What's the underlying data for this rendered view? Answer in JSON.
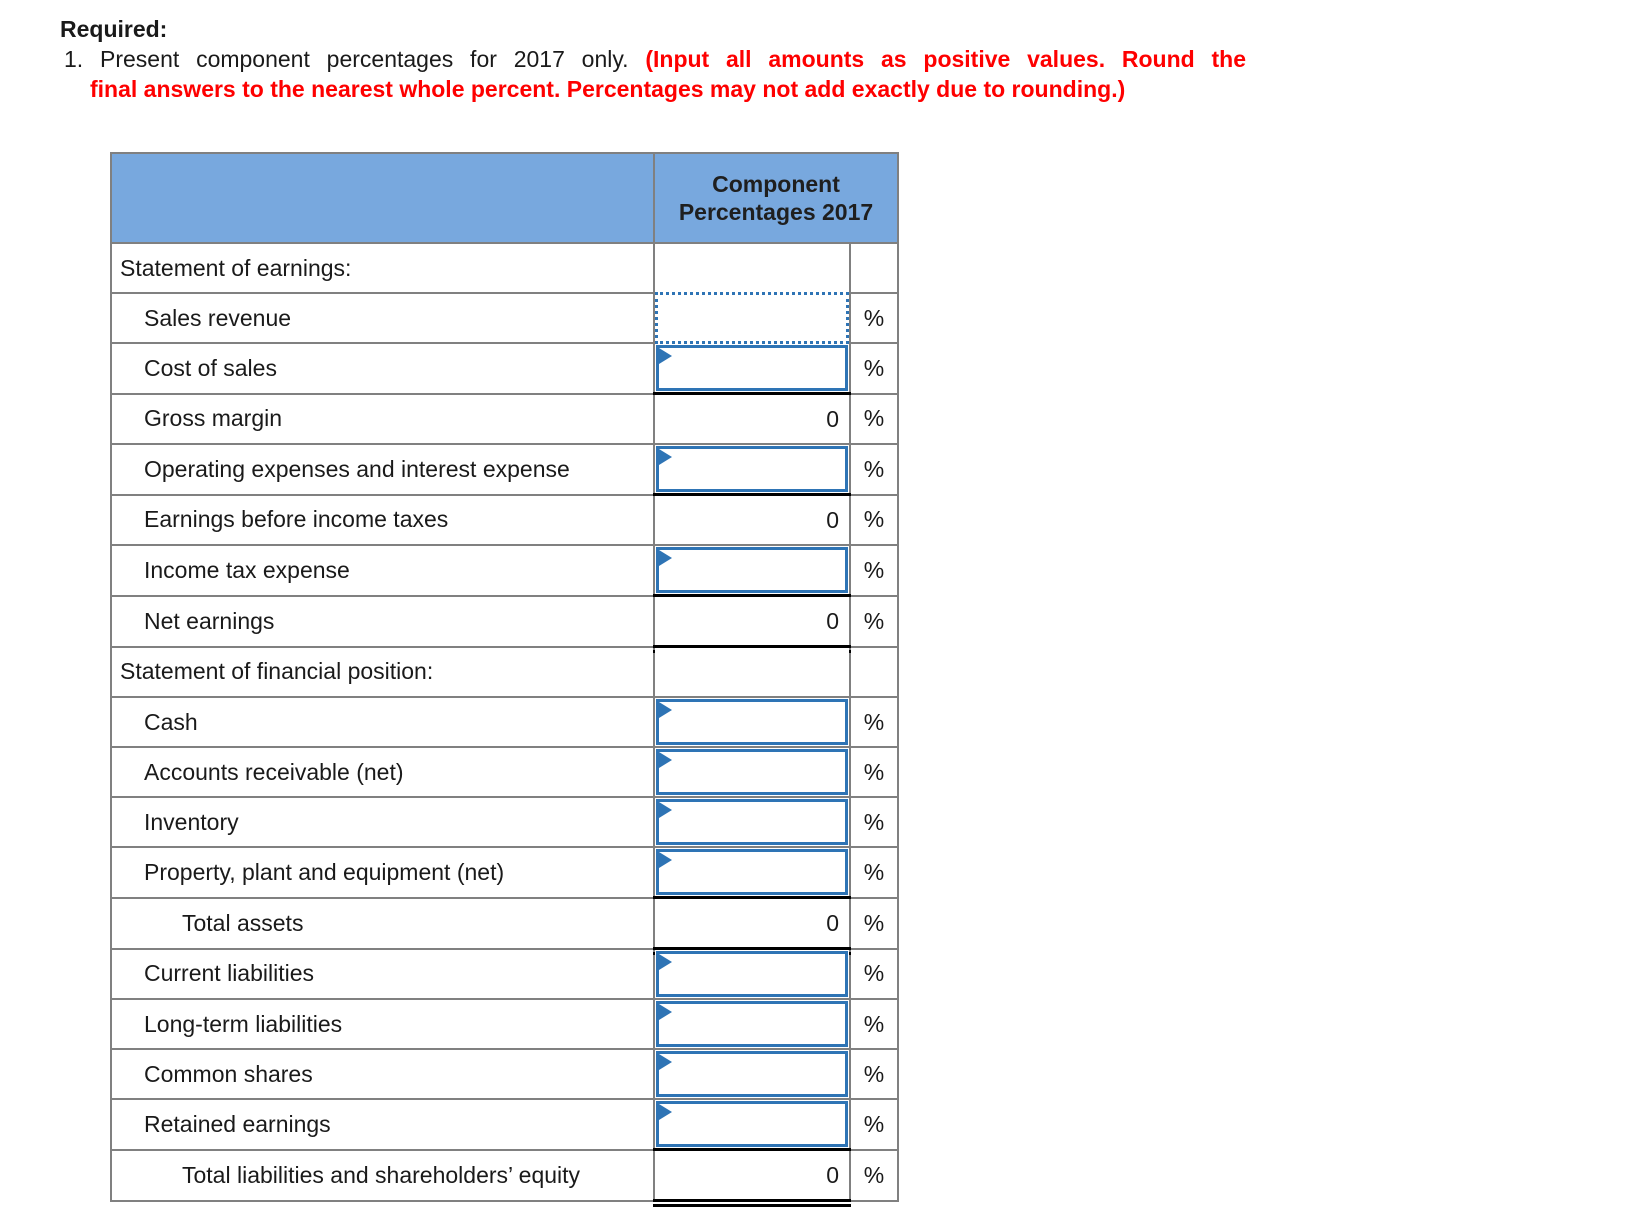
{
  "intro": {
    "heading": "Required:",
    "item_number": "1.",
    "statement": "Present component percentages for 2017 only.",
    "warning_line1": "(Input all amounts as positive values. Round the",
    "warning_line2": "final answers to the nearest whole percent. Percentages may not add exactly due to rounding.)"
  },
  "colors": {
    "header_bg": "#78a8de",
    "grid_border": "#808080",
    "input_border": "#2e74b5",
    "accounting_rule": "#000000",
    "warning_text": "#fe0000"
  },
  "table": {
    "header_label": "Component Percentages 2017",
    "percent_symbol": "%",
    "rows": [
      {
        "label": "Statement of earnings:",
        "type": "section",
        "indent": 0
      },
      {
        "label": "Sales revenue",
        "type": "input_active",
        "indent": 1,
        "value": "",
        "suffix": "%"
      },
      {
        "label": "Cost of sales",
        "type": "input",
        "indent": 1,
        "value": "",
        "suffix": "%"
      },
      {
        "label": "Gross margin",
        "type": "subtotal",
        "indent": 1,
        "value": "0",
        "suffix": "%"
      },
      {
        "label": "Operating expenses and interest expense",
        "type": "input",
        "indent": 1,
        "value": "",
        "suffix": "%"
      },
      {
        "label": "Earnings before income taxes",
        "type": "subtotal",
        "indent": 1,
        "value": "0",
        "suffix": "%"
      },
      {
        "label": "Income tax expense",
        "type": "input",
        "indent": 1,
        "value": "",
        "suffix": "%"
      },
      {
        "label": "Net earnings",
        "type": "total",
        "indent": 1,
        "value": "0",
        "suffix": "%"
      },
      {
        "label": "Statement of financial position:",
        "type": "section",
        "indent": 0
      },
      {
        "label": "Cash",
        "type": "input",
        "indent": 1,
        "value": "",
        "suffix": "%"
      },
      {
        "label": "Accounts receivable (net)",
        "type": "input",
        "indent": 1,
        "value": "",
        "suffix": "%"
      },
      {
        "label": "Inventory",
        "type": "input",
        "indent": 1,
        "value": "",
        "suffix": "%"
      },
      {
        "label": "Property, plant and equipment (net)",
        "type": "input",
        "indent": 1,
        "value": "",
        "suffix": "%"
      },
      {
        "label": "Total assets",
        "type": "total",
        "indent": 2,
        "value": "0",
        "suffix": "%"
      },
      {
        "label": "Current liabilities",
        "type": "input",
        "indent": 1,
        "value": "",
        "suffix": "%"
      },
      {
        "label": "Long-term liabilities",
        "type": "input",
        "indent": 1,
        "value": "",
        "suffix": "%"
      },
      {
        "label": "Common shares",
        "type": "input",
        "indent": 1,
        "value": "",
        "suffix": "%"
      },
      {
        "label": "Retained earnings",
        "type": "input",
        "indent": 1,
        "value": "",
        "suffix": "%"
      },
      {
        "label": "Total liabilities and shareholders’ equity",
        "type": "total",
        "indent": 2,
        "value": "0",
        "suffix": "%"
      }
    ]
  }
}
